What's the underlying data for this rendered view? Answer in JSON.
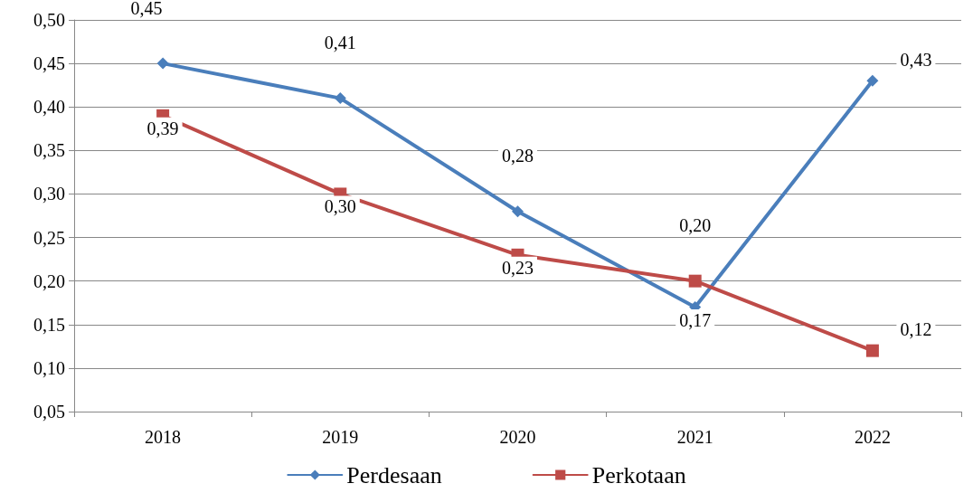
{
  "chart_data": {
    "type": "line",
    "categories": [
      "2018",
      "2019",
      "2020",
      "2021",
      "2022"
    ],
    "series": [
      {
        "name": "Perdesaan",
        "color": "#4a7ebb",
        "marker": "diamond",
        "values": [
          0.45,
          0.41,
          0.28,
          0.17,
          0.43
        ],
        "value_labels": [
          "0,45",
          "0,41",
          "0,28",
          "0,17",
          "0,43"
        ]
      },
      {
        "name": "Perkotaan",
        "color": "#be4b48",
        "marker": "square",
        "values": [
          0.39,
          0.3,
          0.23,
          0.2,
          0.12
        ],
        "value_labels": [
          "0,39",
          "0,30",
          "0,23",
          "0,20",
          "0,12"
        ]
      }
    ],
    "ylim": [
      0.05,
      0.5
    ],
    "yticks": [
      {
        "value": 0.05,
        "label": "0,05"
      },
      {
        "value": 0.1,
        "label": "0,10"
      },
      {
        "value": 0.15,
        "label": "0,15"
      },
      {
        "value": 0.2,
        "label": "0,20"
      },
      {
        "value": 0.25,
        "label": "0,25"
      },
      {
        "value": 0.3,
        "label": "0,30"
      },
      {
        "value": 0.35,
        "label": "0,35"
      },
      {
        "value": 0.4,
        "label": "0,40"
      },
      {
        "value": 0.45,
        "label": "0,45"
      },
      {
        "value": 0.5,
        "label": "0,50"
      }
    ],
    "grid": "y",
    "legend": "bottom",
    "line_style": "solid"
  }
}
